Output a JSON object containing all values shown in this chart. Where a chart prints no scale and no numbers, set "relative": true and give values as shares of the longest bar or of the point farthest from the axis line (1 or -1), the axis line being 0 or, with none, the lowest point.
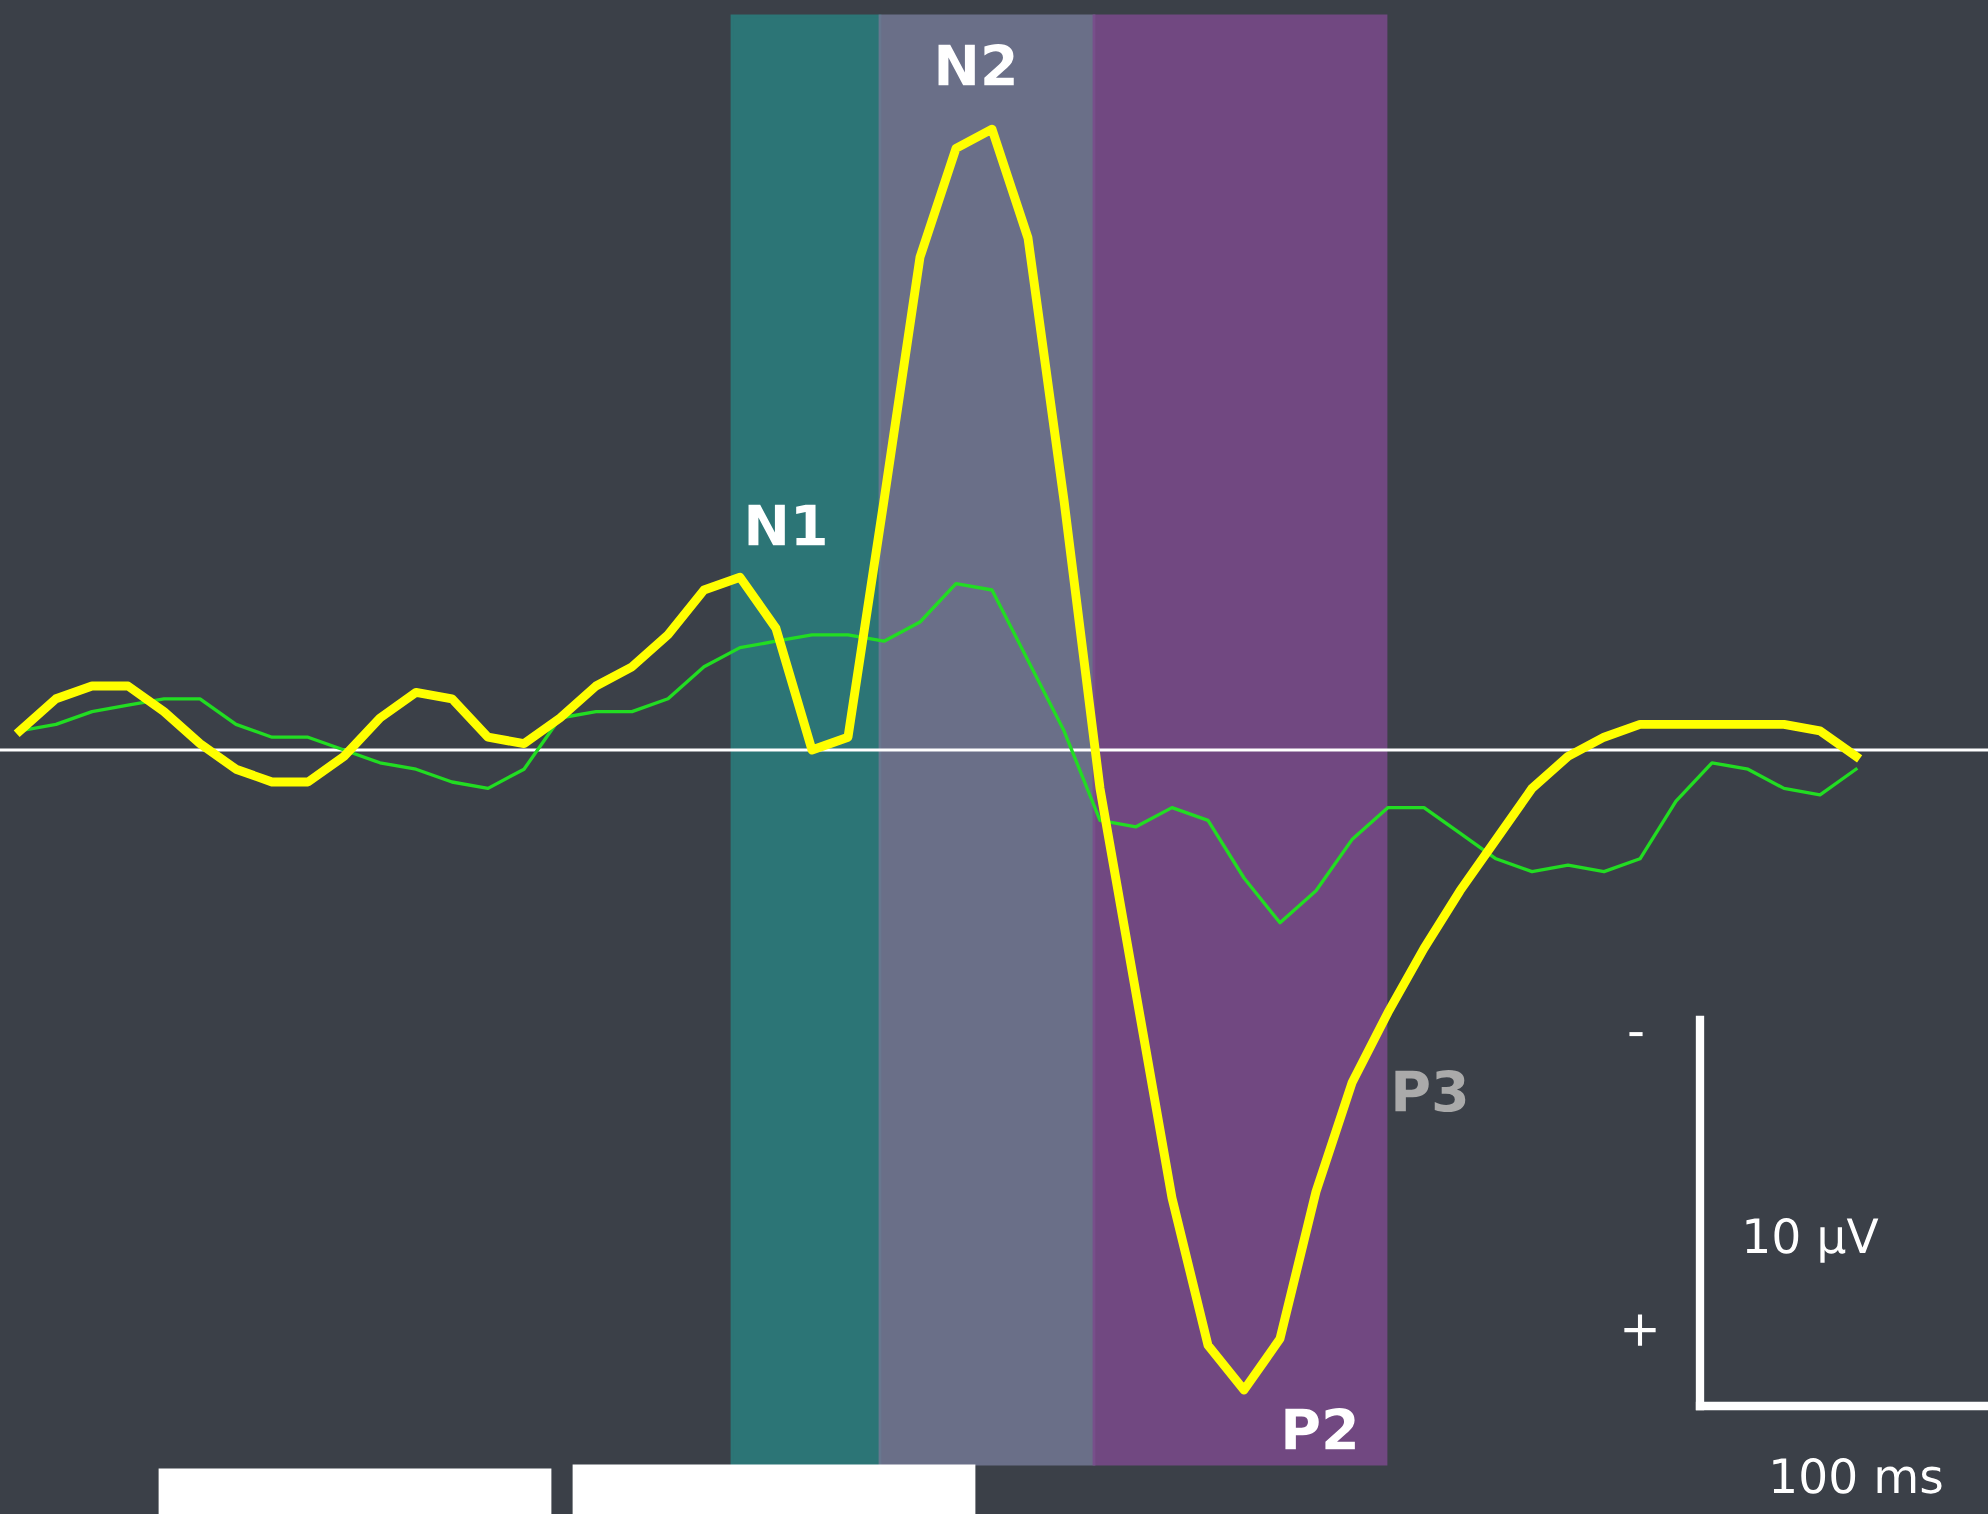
{
  "chart_data": {
    "type": "line",
    "relative": true,
    "categories": [
      null,
      null,
      null,
      null,
      null,
      null,
      null,
      null,
      null,
      null,
      null,
      null,
      null,
      null,
      null,
      null,
      null,
      null,
      null,
      null,
      null,
      null,
      null,
      null,
      null,
      null,
      null,
      null,
      null,
      null,
      null,
      null,
      null,
      null,
      null,
      null,
      null,
      null,
      null,
      null,
      null,
      null,
      null,
      null,
      null,
      null,
      null,
      null,
      null,
      null,
      null,
      null
    ],
    "series": [
      {
        "color": "#ffff00",
        "values": [
          0.03,
          0.08,
          0.1,
          0.1,
          0.06,
          0.01,
          -0.03,
          -0.05,
          -0.05,
          -0.01,
          0.05,
          0.09,
          0.08,
          0.02,
          0.01,
          0.05,
          0.1,
          0.13,
          0.18,
          0.25,
          0.27,
          0.19,
          0.0,
          0.02,
          0.39,
          0.77,
          0.94,
          0.97,
          0.8,
          0.39,
          -0.06,
          -0.38,
          -0.7,
          -0.93,
          -1,
          -0.92,
          -0.69,
          -0.52,
          -0.41,
          -0.31,
          -0.22,
          -0.14,
          -0.06,
          -0.01,
          0.02,
          0.04,
          0.04,
          0.04,
          0.04,
          0.04,
          0.03,
          -0.01
        ]
      },
      {
        "color": "#22dd22",
        "values": [
          0.03,
          0.04,
          0.06,
          0.07,
          0.08,
          0.08,
          0.04,
          0.02,
          0.02,
          0.0,
          -0.02,
          -0.03,
          -0.05,
          -0.06,
          -0.03,
          0.05,
          0.06,
          0.06,
          0.08,
          0.13,
          0.16,
          0.17,
          0.18,
          0.18,
          0.17,
          0.2,
          0.26,
          0.25,
          0.14,
          0.03,
          -0.11,
          -0.12,
          -0.09,
          -0.11,
          -0.2,
          -0.27,
          -0.22,
          -0.14,
          -0.09,
          -0.09,
          -0.13,
          -0.17,
          -0.19,
          -0.18,
          -0.19,
          -0.17,
          -0.08,
          -0.02,
          -0.03,
          -0.06,
          -0.07,
          -0.03
        ]
      }
    ],
    "annotations": [
      "N1",
      "N2",
      "P2",
      "P3",
      "-",
      "+",
      "10 µV",
      "100 ms"
    ],
    "line_style": "solid",
    "marker": "none"
  }
}
